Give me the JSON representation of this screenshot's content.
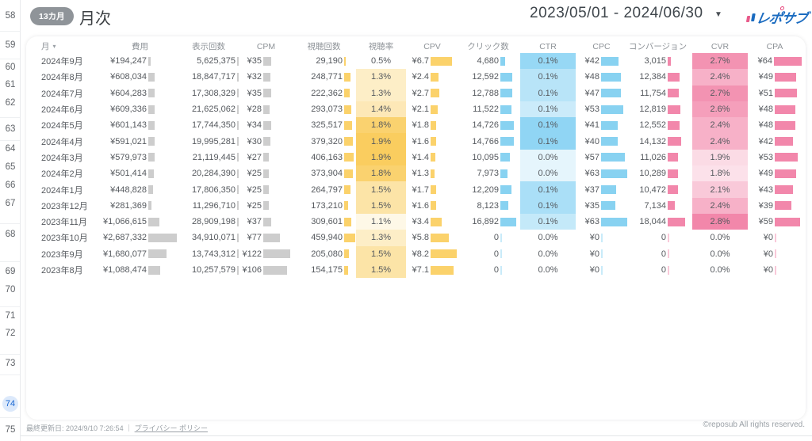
{
  "sidebar": {
    "numbers": [
      58,
      59,
      60,
      61,
      62,
      63,
      64,
      65,
      66,
      67,
      68,
      69,
      70,
      71,
      72,
      73,
      74,
      75
    ],
    "active": 74
  },
  "header": {
    "badge": "13カ月",
    "title": "月次",
    "date_range": "2023/05/01 - 2024/06/30",
    "caret_icon": "▼",
    "logo_text": "レポサブ"
  },
  "table": {
    "columns": {
      "month": "月",
      "cost": "費用",
      "imp": "表示回数",
      "cpm": "CPM",
      "views": "視聴回数",
      "vr": "視聴率",
      "cpv": "CPV",
      "clicks": "クリック数",
      "ctr": "CTR",
      "cpc": "CPC",
      "conv": "コンバージョン",
      "cvr": "CVR",
      "cpa": "CPA"
    },
    "sort_icon": "▾",
    "rows": [
      {
        "month": "2024年9月",
        "cost": {
          "t": "¥194,247",
          "b": 0.07
        },
        "imp": {
          "t": "5,625,375",
          "b": 0.5
        },
        "cpm": {
          "t": "¥35",
          "b": 0.29
        },
        "views": {
          "t": "29,190",
          "b": 0.06
        },
        "vr": {
          "t": "0.5%",
          "h": 0
        },
        "cpv": {
          "t": "¥6.7",
          "b": 0.82
        },
        "clicks": {
          "t": "4,680",
          "b": 0.28
        },
        "ctr": {
          "t": "0.1%",
          "h": 0.8
        },
        "cpc": {
          "t": "¥42",
          "b": 0.67
        },
        "conv": {
          "t": "3,015",
          "b": 0.17
        },
        "cvr": {
          "t": "2.7%",
          "h": 0.9
        },
        "cpa": {
          "t": "¥64",
          "b": 1.0
        }
      },
      {
        "month": "2024年8月",
        "cost": {
          "t": "¥608,034",
          "b": 0.23
        },
        "imp": {
          "t": "18,847,717",
          "b": 0.5
        },
        "cpm": {
          "t": "¥32",
          "b": 0.26
        },
        "views": {
          "t": "248,771",
          "b": 0.54
        },
        "vr": {
          "t": "1.3%",
          "h": 0.35
        },
        "cpv": {
          "t": "¥2.4",
          "b": 0.29
        },
        "clicks": {
          "t": "12,592",
          "b": 0.75
        },
        "ctr": {
          "t": "0.1%",
          "h": 0.55
        },
        "cpc": {
          "t": "¥48",
          "b": 0.76
        },
        "conv": {
          "t": "12,384",
          "b": 0.69
        },
        "cvr": {
          "t": "2.4%",
          "h": 0.65
        },
        "cpa": {
          "t": "¥49",
          "b": 0.77
        }
      },
      {
        "month": "2024年7月",
        "cost": {
          "t": "¥604,283",
          "b": 0.22
        },
        "imp": {
          "t": "17,308,329",
          "b": 0.5
        },
        "cpm": {
          "t": "¥35",
          "b": 0.29
        },
        "views": {
          "t": "222,362",
          "b": 0.48
        },
        "vr": {
          "t": "1.3%",
          "h": 0.35
        },
        "cpv": {
          "t": "¥2.7",
          "b": 0.33
        },
        "clicks": {
          "t": "12,788",
          "b": 0.76
        },
        "ctr": {
          "t": "0.1%",
          "h": 0.55
        },
        "cpc": {
          "t": "¥47",
          "b": 0.75
        },
        "conv": {
          "t": "11,754",
          "b": 0.65
        },
        "cvr": {
          "t": "2.7%",
          "h": 0.9
        },
        "cpa": {
          "t": "¥51",
          "b": 0.8
        }
      },
      {
        "month": "2024年6月",
        "cost": {
          "t": "¥609,336",
          "b": 0.23
        },
        "imp": {
          "t": "21,625,062",
          "b": 0.5
        },
        "cpm": {
          "t": "¥28",
          "b": 0.23
        },
        "views": {
          "t": "293,073",
          "b": 0.64
        },
        "vr": {
          "t": "1.4%",
          "h": 0.45
        },
        "cpv": {
          "t": "¥2.1",
          "b": 0.26
        },
        "clicks": {
          "t": "11,522",
          "b": 0.68
        },
        "ctr": {
          "t": "0.1%",
          "h": 0.4
        },
        "cpc": {
          "t": "¥53",
          "b": 0.84
        },
        "conv": {
          "t": "12,819",
          "b": 0.71
        },
        "cvr": {
          "t": "2.6%",
          "h": 0.8
        },
        "cpa": {
          "t": "¥48",
          "b": 0.75
        }
      },
      {
        "month": "2024年5月",
        "cost": {
          "t": "¥601,143",
          "b": 0.22
        },
        "imp": {
          "t": "17,744,350",
          "b": 0.5
        },
        "cpm": {
          "t": "¥34",
          "b": 0.28
        },
        "views": {
          "t": "325,517",
          "b": 0.71
        },
        "vr": {
          "t": "1.8%",
          "h": 0.9
        },
        "cpv": {
          "t": "¥1.8",
          "b": 0.22
        },
        "clicks": {
          "t": "14,726",
          "b": 0.87
        },
        "ctr": {
          "t": "0.1%",
          "h": 0.85
        },
        "cpc": {
          "t": "¥41",
          "b": 0.65
        },
        "conv": {
          "t": "12,552",
          "b": 0.7
        },
        "cvr": {
          "t": "2.4%",
          "h": 0.65
        },
        "cpa": {
          "t": "¥48",
          "b": 0.75
        }
      },
      {
        "month": "2024年4月",
        "cost": {
          "t": "¥591,021",
          "b": 0.22
        },
        "imp": {
          "t": "19,995,281",
          "b": 0.5
        },
        "cpm": {
          "t": "¥30",
          "b": 0.25
        },
        "views": {
          "t": "379,320",
          "b": 0.82
        },
        "vr": {
          "t": "1.9%",
          "h": 1.0
        },
        "cpv": {
          "t": "¥1.6",
          "b": 0.2
        },
        "clicks": {
          "t": "14,766",
          "b": 0.87
        },
        "ctr": {
          "t": "0.1%",
          "h": 0.85
        },
        "cpc": {
          "t": "¥40",
          "b": 0.63
        },
        "conv": {
          "t": "14,132",
          "b": 0.78
        },
        "cvr": {
          "t": "2.4%",
          "h": 0.65
        },
        "cpa": {
          "t": "¥42",
          "b": 0.66
        }
      },
      {
        "month": "2024年3月",
        "cost": {
          "t": "¥579,973",
          "b": 0.22
        },
        "imp": {
          "t": "21,119,445",
          "b": 0.5
        },
        "cpm": {
          "t": "¥27",
          "b": 0.22
        },
        "views": {
          "t": "406,163",
          "b": 0.88
        },
        "vr": {
          "t": "1.9%",
          "h": 1.0
        },
        "cpv": {
          "t": "¥1.4",
          "b": 0.17
        },
        "clicks": {
          "t": "10,095",
          "b": 0.6
        },
        "ctr": {
          "t": "0.0%",
          "h": 0.2
        },
        "cpc": {
          "t": "¥57",
          "b": 0.9
        },
        "conv": {
          "t": "11,026",
          "b": 0.61
        },
        "cvr": {
          "t": "1.9%",
          "h": 0.3
        },
        "cpa": {
          "t": "¥53",
          "b": 0.83
        }
      },
      {
        "month": "2024年2月",
        "cost": {
          "t": "¥501,414",
          "b": 0.19
        },
        "imp": {
          "t": "20,284,390",
          "b": 0.5
        },
        "cpm": {
          "t": "¥25",
          "b": 0.2
        },
        "views": {
          "t": "373,904",
          "b": 0.81
        },
        "vr": {
          "t": "1.8%",
          "h": 0.9
        },
        "cpv": {
          "t": "¥1.3",
          "b": 0.16
        },
        "clicks": {
          "t": "7,973",
          "b": 0.47
        },
        "ctr": {
          "t": "0.0%",
          "h": 0.2
        },
        "cpc": {
          "t": "¥63",
          "b": 1.0
        },
        "conv": {
          "t": "10,289",
          "b": 0.57
        },
        "cvr": {
          "t": "1.8%",
          "h": 0.25
        },
        "cpa": {
          "t": "¥49",
          "b": 0.77
        }
      },
      {
        "month": "2024年1月",
        "cost": {
          "t": "¥448,828",
          "b": 0.17
        },
        "imp": {
          "t": "17,806,350",
          "b": 0.5
        },
        "cpm": {
          "t": "¥25",
          "b": 0.2
        },
        "views": {
          "t": "264,797",
          "b": 0.58
        },
        "vr": {
          "t": "1.5%",
          "h": 0.55
        },
        "cpv": {
          "t": "¥1.7",
          "b": 0.21
        },
        "clicks": {
          "t": "12,209",
          "b": 0.72
        },
        "ctr": {
          "t": "0.1%",
          "h": 0.65
        },
        "cpc": {
          "t": "¥37",
          "b": 0.59
        },
        "conv": {
          "t": "10,472",
          "b": 0.58
        },
        "cvr": {
          "t": "2.1%",
          "h": 0.45
        },
        "cpa": {
          "t": "¥43",
          "b": 0.67
        }
      },
      {
        "month": "2023年12月",
        "cost": {
          "t": "¥281,369",
          "b": 0.1
        },
        "imp": {
          "t": "11,296,710",
          "b": 0.5
        },
        "cpm": {
          "t": "¥25",
          "b": 0.2
        },
        "views": {
          "t": "173,210",
          "b": 0.38
        },
        "vr": {
          "t": "1.5%",
          "h": 0.55
        },
        "cpv": {
          "t": "¥1.6",
          "b": 0.2
        },
        "clicks": {
          "t": "8,123",
          "b": 0.48
        },
        "ctr": {
          "t": "0.1%",
          "h": 0.65
        },
        "cpc": {
          "t": "¥35",
          "b": 0.56
        },
        "conv": {
          "t": "7,134",
          "b": 0.4
        },
        "cvr": {
          "t": "2.4%",
          "h": 0.65
        },
        "cpa": {
          "t": "¥39",
          "b": 0.61
        }
      },
      {
        "month": "2023年11月",
        "cost": {
          "t": "¥1,066,615",
          "b": 0.4
        },
        "imp": {
          "t": "28,909,198",
          "b": 0.5
        },
        "cpm": {
          "t": "¥37",
          "b": 0.3
        },
        "views": {
          "t": "309,601",
          "b": 0.67
        },
        "vr": {
          "t": "1.1%",
          "h": 0.15
        },
        "cpv": {
          "t": "¥3.4",
          "b": 0.41
        },
        "clicks": {
          "t": "16,892",
          "b": 1.0
        },
        "ctr": {
          "t": "0.1%",
          "h": 0.45
        },
        "cpc": {
          "t": "¥63",
          "b": 1.0
        },
        "conv": {
          "t": "18,044",
          "b": 1.0
        },
        "cvr": {
          "t": "2.8%",
          "h": 1.0
        },
        "cpa": {
          "t": "¥59",
          "b": 0.92
        }
      },
      {
        "month": "2023年10月",
        "cost": {
          "t": "¥2,687,332",
          "b": 1.0
        },
        "imp": {
          "t": "34,910,071",
          "b": 0.5
        },
        "cpm": {
          "t": "¥77",
          "b": 0.63
        },
        "views": {
          "t": "459,940",
          "b": 1.0
        },
        "vr": {
          "t": "1.3%",
          "h": 0.35
        },
        "cpv": {
          "t": "¥5.8",
          "b": 0.71
        },
        "clicks": {
          "t": "0",
          "b": 0.04,
          "zero": true
        },
        "ctr": {
          "t": "0.0%",
          "h": 0
        },
        "cpc": {
          "t": "¥0",
          "b": 0.04,
          "zero": true
        },
        "conv": {
          "t": "0",
          "b": 0.05,
          "zero": true
        },
        "cvr": {
          "t": "0.0%",
          "h": 0
        },
        "cpa": {
          "t": "¥0",
          "b": 0.04,
          "zero": true
        }
      },
      {
        "month": "2023年9月",
        "cost": {
          "t": "¥1,680,077",
          "b": 0.63
        },
        "imp": {
          "t": "13,743,312",
          "b": 0.5
        },
        "cpm": {
          "t": "¥122",
          "b": 1.0
        },
        "views": {
          "t": "205,080",
          "b": 0.45
        },
        "vr": {
          "t": "1.5%",
          "h": 0.55
        },
        "cpv": {
          "t": "¥8.2",
          "b": 1.0
        },
        "clicks": {
          "t": "0",
          "b": 0.04,
          "zero": true
        },
        "ctr": {
          "t": "0.0%",
          "h": 0
        },
        "cpc": {
          "t": "¥0",
          "b": 0.04,
          "zero": true
        },
        "conv": {
          "t": "0",
          "b": 0.05,
          "zero": true
        },
        "cvr": {
          "t": "0.0%",
          "h": 0
        },
        "cpa": {
          "t": "¥0",
          "b": 0.04,
          "zero": true
        }
      },
      {
        "month": "2023年8月",
        "cost": {
          "t": "¥1,088,474",
          "b": 0.41
        },
        "imp": {
          "t": "10,257,579",
          "b": 0.5
        },
        "cpm": {
          "t": "¥106",
          "b": 0.87
        },
        "views": {
          "t": "154,175",
          "b": 0.34
        },
        "vr": {
          "t": "1.5%",
          "h": 0.55
        },
        "cpv": {
          "t": "¥7.1",
          "b": 0.87
        },
        "clicks": {
          "t": "0",
          "b": 0.04,
          "zero": true
        },
        "ctr": {
          "t": "0.0%",
          "h": 0
        },
        "cpc": {
          "t": "¥0",
          "b": 0.04,
          "zero": true
        },
        "conv": {
          "t": "0",
          "b": 0.05,
          "zero": true
        },
        "cvr": {
          "t": "0.0%",
          "h": 0
        },
        "cpa": {
          "t": "¥0",
          "b": 0.04,
          "zero": true
        }
      }
    ]
  },
  "footer": {
    "updated": "最終更新日: 2024/9/10 7:26:54",
    "separator": "｜",
    "privacy_link": "プライバシー ポリシー",
    "copyright": "©reposub All rights reserved."
  },
  "colors": {
    "bar_gray": "#cdcdcd",
    "bar_yellow": "#fbd26b",
    "bar_blue": "#88d2f1",
    "bar_pink": "#f287ab",
    "heat_yellow": "250,205,95",
    "heat_blue": "125,206,242",
    "heat_pink": "242,135,170",
    "accent_blue": "#1967d2"
  }
}
